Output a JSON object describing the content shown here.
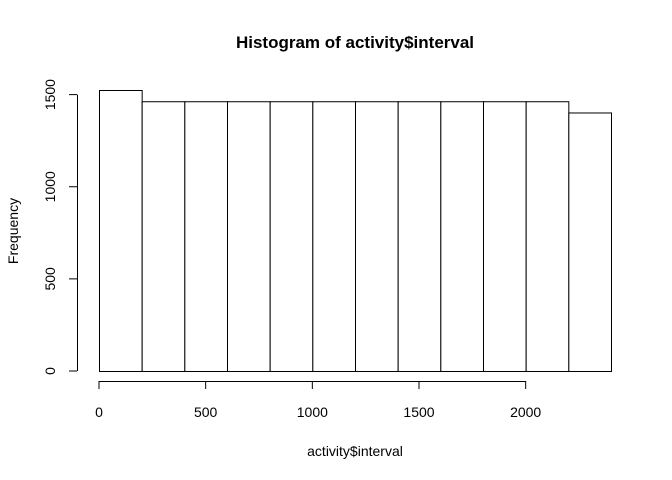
{
  "chart_data": {
    "type": "bar",
    "title": "Histogram of activity$interval",
    "xlabel": "activity$interval",
    "ylabel": "Frequency",
    "bin_edges": [
      0,
      200,
      400,
      600,
      800,
      1000,
      1200,
      1400,
      1600,
      1800,
      2000,
      2200,
      2400
    ],
    "values": [
      1525,
      1464,
      1464,
      1464,
      1464,
      1464,
      1464,
      1464,
      1464,
      1464,
      1464,
      1403
    ],
    "xlim": [
      0,
      2400
    ],
    "ylim": [
      0,
      1525
    ],
    "x_ticks": [
      0,
      500,
      1000,
      1500,
      2000
    ],
    "y_ticks": [
      0,
      500,
      1000,
      1500
    ],
    "grid": false,
    "bar_fill": "#ffffff",
    "bar_stroke": "#000000"
  }
}
